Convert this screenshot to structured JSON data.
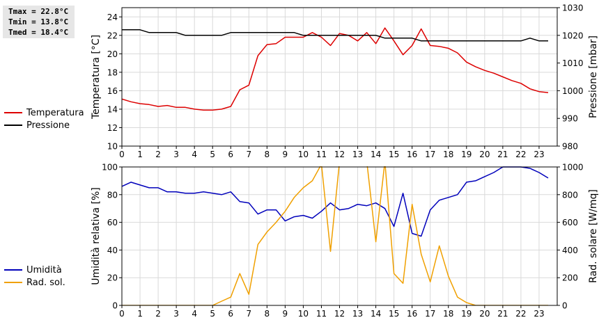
{
  "stats": {
    "tmax": "Tmax = 22.8°C",
    "tmin": "Tmin = 13.8°C",
    "tmed": "Tmed = 18.4°C"
  },
  "legend_top": [
    {
      "label": "Temperatura",
      "color": "#dd0000"
    },
    {
      "label": "Pressione",
      "color": "#000000"
    }
  ],
  "legend_bottom": [
    {
      "label": "Umidità",
      "color": "#0000bb"
    },
    {
      "label": "Rad. sol.",
      "color": "#f0a000"
    }
  ],
  "chart_data": [
    {
      "type": "line",
      "xlabel": "",
      "xlim": [
        0,
        24
      ],
      "x_ticks": [
        0,
        1,
        2,
        3,
        4,
        5,
        6,
        7,
        8,
        9,
        10,
        11,
        12,
        13,
        14,
        15,
        16,
        17,
        18,
        19,
        20,
        21,
        22,
        23
      ],
      "y_left": {
        "label": "Temperatura [°C]",
        "lim": [
          10,
          25
        ],
        "ticks": [
          10,
          12,
          14,
          16,
          18,
          20,
          22,
          24
        ]
      },
      "y_right": {
        "label": "Pressione [mbar]",
        "lim": [
          980,
          1030
        ],
        "ticks": [
          980,
          990,
          1000,
          1010,
          1020,
          1030
        ]
      },
      "grid": true,
      "series": [
        {
          "name": "Temperatura",
          "axis": "left",
          "color": "#dd0000",
          "x": [
            0,
            0.5,
            1,
            1.5,
            2,
            2.5,
            3,
            3.5,
            4,
            4.5,
            5,
            5.5,
            6,
            6.5,
            7,
            7.5,
            8,
            8.5,
            9,
            9.5,
            10,
            10.5,
            11,
            11.5,
            12,
            12.5,
            13,
            13.5,
            14,
            14.5,
            15,
            15.5,
            16,
            16.5,
            17,
            17.5,
            18,
            18.5,
            19,
            19.5,
            20,
            20.5,
            21,
            21.5,
            22,
            22.5,
            23,
            23.5
          ],
          "values": [
            15.1,
            14.8,
            14.6,
            14.5,
            14.3,
            14.4,
            14.2,
            14.2,
            14.0,
            13.9,
            13.9,
            14.0,
            14.3,
            16.1,
            16.6,
            19.8,
            21.0,
            21.1,
            21.8,
            21.8,
            21.8,
            22.3,
            21.8,
            20.9,
            22.2,
            22.0,
            21.4,
            22.3,
            21.1,
            22.8,
            21.4,
            19.9,
            20.9,
            22.7,
            20.9,
            20.8,
            20.6,
            20.1,
            19.1,
            18.6,
            18.2,
            17.9,
            17.5,
            17.1,
            16.8,
            16.2,
            15.9,
            15.8
          ]
        },
        {
          "name": "Pressione",
          "axis": "right",
          "color": "#000000",
          "x": [
            0,
            0.5,
            1,
            1.5,
            2,
            2.5,
            3,
            3.5,
            4,
            4.5,
            5,
            5.5,
            6,
            6.5,
            7,
            7.5,
            8,
            8.5,
            9,
            9.5,
            10,
            10.5,
            11,
            11.5,
            12,
            12.5,
            13,
            13.5,
            14,
            14.5,
            15,
            15.5,
            16,
            16.5,
            17,
            17.5,
            18,
            18.5,
            19,
            19.5,
            20,
            20.5,
            21,
            21.5,
            22,
            22.5,
            23,
            23.5
          ],
          "values": [
            1022,
            1022,
            1022,
            1021,
            1021,
            1021,
            1021,
            1020,
            1020,
            1020,
            1020,
            1020,
            1021,
            1021,
            1021,
            1021,
            1021,
            1021,
            1021,
            1021,
            1020,
            1020,
            1020,
            1020,
            1020,
            1020,
            1020,
            1020,
            1020,
            1019,
            1019,
            1019,
            1019,
            1018,
            1018,
            1018,
            1018,
            1018,
            1018,
            1018,
            1018,
            1018,
            1018,
            1018,
            1018,
            1019,
            1018,
            1018
          ]
        }
      ]
    },
    {
      "type": "line",
      "xlabel": "",
      "xlim": [
        0,
        24
      ],
      "x_ticks": [
        0,
        1,
        2,
        3,
        4,
        5,
        6,
        7,
        8,
        9,
        10,
        11,
        12,
        13,
        14,
        15,
        16,
        17,
        18,
        19,
        20,
        21,
        22,
        23
      ],
      "y_left": {
        "label": "Umidità relativa [%]",
        "lim": [
          0,
          100
        ],
        "ticks": [
          0,
          20,
          40,
          60,
          80,
          100
        ]
      },
      "y_right": {
        "label": "Rad. solare [W/mq]",
        "lim": [
          0,
          1000
        ],
        "ticks": [
          0,
          200,
          400,
          600,
          800,
          1000
        ]
      },
      "grid": true,
      "series": [
        {
          "name": "Umidità",
          "axis": "left",
          "color": "#0000bb",
          "x": [
            0,
            0.5,
            1,
            1.5,
            2,
            2.5,
            3,
            3.5,
            4,
            4.5,
            5,
            5.5,
            6,
            6.5,
            7,
            7.5,
            8,
            8.5,
            9,
            9.5,
            10,
            10.5,
            11,
            11.5,
            12,
            12.5,
            13,
            13.5,
            14,
            14.5,
            15,
            15.5,
            16,
            16.5,
            17,
            17.5,
            18,
            18.5,
            19,
            19.5,
            20,
            20.5,
            21,
            21.5,
            22,
            22.5,
            23,
            23.5
          ],
          "values": [
            86,
            89,
            87,
            85,
            85,
            82,
            82,
            81,
            81,
            82,
            81,
            80,
            82,
            75,
            74,
            66,
            69,
            69,
            61,
            64,
            65,
            63,
            68,
            74,
            69,
            70,
            73,
            72,
            74,
            70,
            57,
            81,
            52,
            50,
            69,
            76,
            78,
            80,
            89,
            90,
            93,
            96,
            100,
            100,
            100,
            99,
            96,
            92
          ]
        },
        {
          "name": "Rad. sol.",
          "axis": "right",
          "color": "#f0a000",
          "x": [
            0,
            0.5,
            1,
            1.5,
            2,
            2.5,
            3,
            3.5,
            4,
            4.5,
            5,
            5.5,
            6,
            6.5,
            7,
            7.5,
            8,
            8.5,
            9,
            9.5,
            10,
            10.5,
            11,
            11.5,
            12,
            12.5,
            13,
            13.5,
            14,
            14.5,
            15,
            15.5,
            16,
            16.5,
            17,
            17.5,
            18,
            18.5,
            19,
            19.5,
            20,
            20.5,
            21,
            21.5,
            22,
            22.5,
            23,
            23.5
          ],
          "values": [
            0,
            0,
            0,
            0,
            0,
            0,
            0,
            0,
            0,
            0,
            0,
            30,
            60,
            230,
            80,
            440,
            530,
            600,
            680,
            780,
            850,
            900,
            1020,
            390,
            1040,
            1060,
            1050,
            1040,
            460,
            1040,
            230,
            160,
            730,
            370,
            170,
            430,
            210,
            60,
            20,
            0,
            0,
            0,
            0,
            0,
            0,
            0,
            0,
            0
          ]
        }
      ]
    }
  ]
}
